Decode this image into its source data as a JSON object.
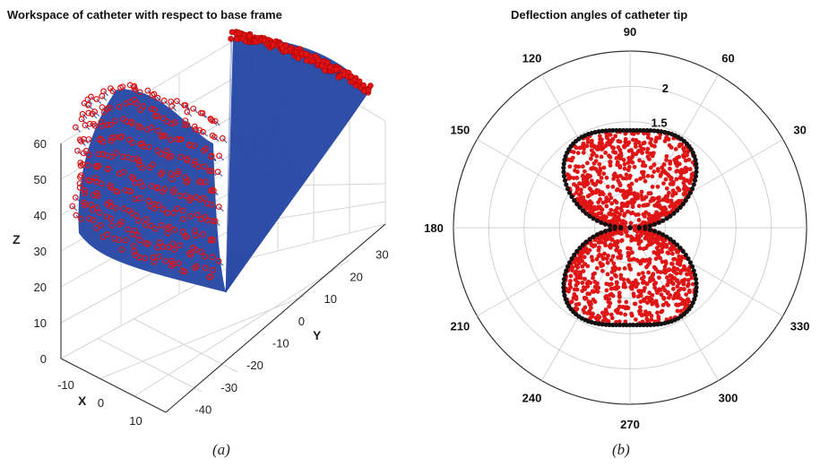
{
  "chart_data": [
    {
      "type": "scatter3d",
      "title": "Workspace of catheter with respect to base frame",
      "xlabel": "X",
      "ylabel": "Y",
      "zlabel": "Z",
      "caption": "(a)",
      "x_ticks": [
        -10,
        0,
        10
      ],
      "y_ticks": [
        -40,
        -30,
        -20,
        -10,
        0,
        10,
        20,
        30
      ],
      "z_ticks": [
        0,
        10,
        20,
        30,
        40,
        50,
        60
      ],
      "xlim": [
        -15,
        15
      ],
      "ylim": [
        -45,
        40
      ],
      "zlim": [
        0,
        60
      ],
      "grid": true,
      "series": [
        {
          "role": "catheter-body-surface",
          "color": "#2f4fa8"
        },
        {
          "role": "catheter-tip-points",
          "color": "#e01515"
        }
      ]
    },
    {
      "type": "polar-scatter",
      "title": "Deflection angles of catheter tip",
      "caption": "(b)",
      "angle_ticks": [
        0,
        30,
        60,
        90,
        120,
        150,
        180,
        210,
        240,
        270,
        300,
        330
      ],
      "angle_tick_labels": [
        "",
        "30",
        "60",
        "90",
        "120",
        "150",
        "180",
        "210",
        "240",
        "270",
        "300",
        "330"
      ],
      "radial_ticks": [
        0.5,
        1,
        1.5,
        2
      ],
      "radial_tick_labels": [
        "",
        "",
        "1.5",
        "2"
      ],
      "rlim": [
        0,
        2.5
      ],
      "grid": true,
      "series": [
        {
          "role": "deflection-points",
          "color": "#e01515"
        },
        {
          "role": "boundary-points",
          "color": "#111111"
        }
      ]
    }
  ]
}
